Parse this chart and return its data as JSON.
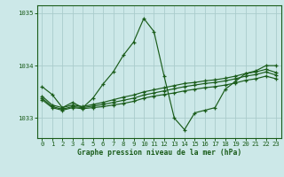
{
  "title": "Graphe pression niveau de la mer (hPa)",
  "background_color": "#cce8e8",
  "plot_bg_color": "#cce8e8",
  "grid_color": "#aacccc",
  "line_color": "#1a5c1a",
  "xlim": [
    -0.5,
    23.5
  ],
  "ylim": [
    1032.62,
    1035.15
  ],
  "yticks": [
    1033,
    1034,
    1035
  ],
  "xticks": [
    0,
    1,
    2,
    3,
    4,
    5,
    6,
    7,
    8,
    9,
    10,
    11,
    12,
    13,
    14,
    15,
    16,
    17,
    18,
    19,
    20,
    21,
    22,
    23
  ],
  "series0_y": [
    1033.6,
    1033.45,
    1033.2,
    1033.3,
    1033.2,
    1033.38,
    1033.65,
    1033.88,
    1034.2,
    1034.45,
    1034.9,
    1034.65,
    1033.8,
    1033.0,
    1032.78,
    1033.1,
    1033.15,
    1033.2,
    1033.55,
    1033.7,
    1033.85,
    1033.9,
    1034.0,
    1034.0
  ],
  "series1_y": [
    1033.35,
    1033.2,
    1033.15,
    1033.2,
    1033.18,
    1033.2,
    1033.22,
    1033.25,
    1033.28,
    1033.32,
    1033.38,
    1033.42,
    1033.45,
    1033.48,
    1033.52,
    1033.55,
    1033.58,
    1033.6,
    1033.63,
    1033.67,
    1033.72,
    1033.75,
    1033.8,
    1033.75
  ],
  "series2_y": [
    1033.38,
    1033.22,
    1033.17,
    1033.22,
    1033.2,
    1033.23,
    1033.26,
    1033.3,
    1033.34,
    1033.38,
    1033.44,
    1033.48,
    1033.52,
    1033.56,
    1033.6,
    1033.63,
    1033.66,
    1033.68,
    1033.71,
    1033.75,
    1033.8,
    1033.83,
    1033.88,
    1033.82
  ],
  "series3_y": [
    1033.42,
    1033.25,
    1033.2,
    1033.25,
    1033.22,
    1033.26,
    1033.3,
    1033.35,
    1033.4,
    1033.44,
    1033.5,
    1033.54,
    1033.58,
    1033.62,
    1033.66,
    1033.68,
    1033.71,
    1033.73,
    1033.76,
    1033.8,
    1033.85,
    1033.88,
    1033.93,
    1033.87
  ]
}
